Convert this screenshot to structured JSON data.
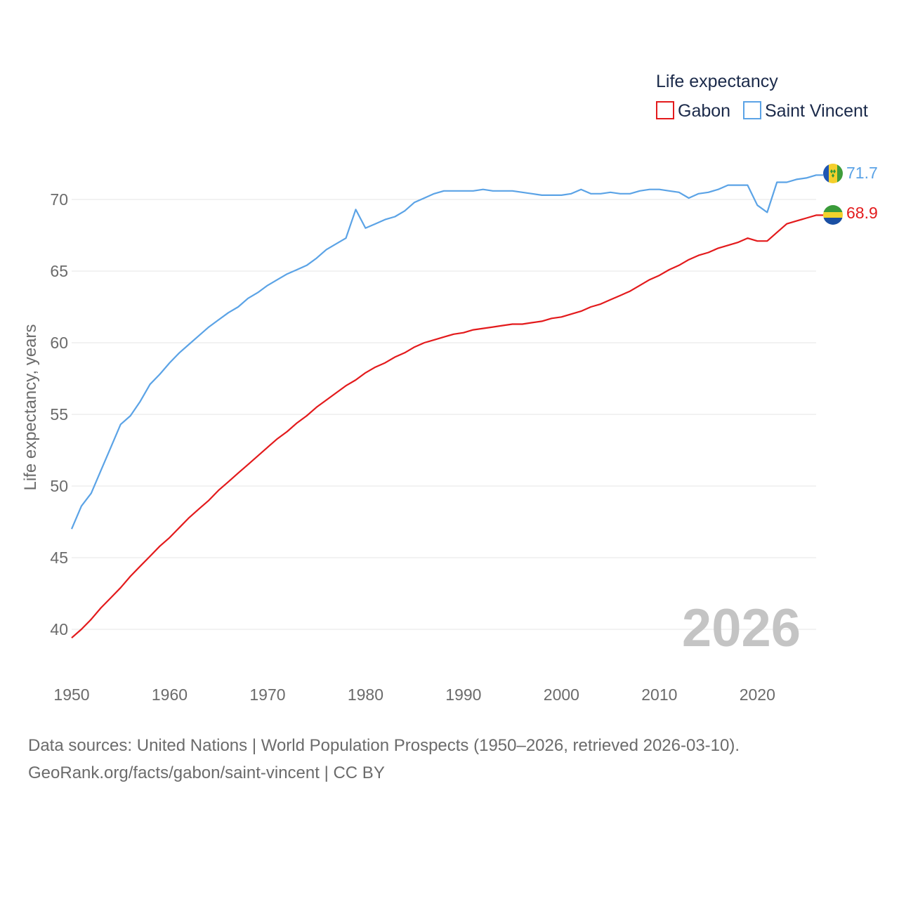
{
  "chart_data": {
    "type": "line",
    "title": "",
    "legend_title": "Life expectancy",
    "ylabel": "Life expectancy, years",
    "xlabel": "",
    "xlim": [
      1950,
      2026
    ],
    "ylim": [
      38,
      73
    ],
    "x_ticks": [
      1950,
      1960,
      1970,
      1980,
      1990,
      2000,
      2010,
      2020
    ],
    "y_ticks": [
      40,
      45,
      50,
      55,
      60,
      65,
      70
    ],
    "grid": true,
    "legend_position": "top-right",
    "current_year_label": "2026",
    "x": [
      1950,
      1951,
      1952,
      1953,
      1954,
      1955,
      1956,
      1957,
      1958,
      1959,
      1960,
      1961,
      1962,
      1963,
      1964,
      1965,
      1966,
      1967,
      1968,
      1969,
      1970,
      1971,
      1972,
      1973,
      1974,
      1975,
      1976,
      1977,
      1978,
      1979,
      1980,
      1981,
      1982,
      1983,
      1984,
      1985,
      1986,
      1987,
      1988,
      1989,
      1990,
      1991,
      1992,
      1993,
      1994,
      1995,
      1996,
      1997,
      1998,
      1999,
      2000,
      2001,
      2002,
      2003,
      2004,
      2005,
      2006,
      2007,
      2008,
      2009,
      2010,
      2011,
      2012,
      2013,
      2014,
      2015,
      2016,
      2017,
      2018,
      2019,
      2020,
      2021,
      2022,
      2023,
      2024,
      2025,
      2026
    ],
    "series": [
      {
        "name": "Gabon",
        "color": "#e31a1c",
        "end_label": "68.9",
        "values": [
          39.4,
          40.0,
          40.7,
          41.5,
          42.2,
          42.9,
          43.7,
          44.4,
          45.1,
          45.8,
          46.4,
          47.1,
          47.8,
          48.4,
          49.0,
          49.7,
          50.3,
          50.9,
          51.5,
          52.1,
          52.7,
          53.3,
          53.8,
          54.4,
          54.9,
          55.5,
          56.0,
          56.5,
          57.0,
          57.4,
          57.9,
          58.3,
          58.6,
          59.0,
          59.3,
          59.7,
          60.0,
          60.2,
          60.4,
          60.6,
          60.7,
          60.9,
          61.0,
          61.1,
          61.2,
          61.3,
          61.3,
          61.4,
          61.5,
          61.7,
          61.8,
          62.0,
          62.2,
          62.5,
          62.7,
          63.0,
          63.3,
          63.6,
          64.0,
          64.4,
          64.7,
          65.1,
          65.4,
          65.8,
          66.1,
          66.3,
          66.6,
          66.8,
          67.0,
          67.3,
          67.1,
          67.1,
          67.7,
          68.3,
          68.5,
          68.7,
          68.9
        ]
      },
      {
        "name": "Saint Vincent",
        "color": "#5ba3e6",
        "end_label": "71.7",
        "values": [
          47.0,
          48.6,
          49.5,
          51.1,
          52.7,
          54.3,
          54.9,
          55.9,
          57.1,
          57.8,
          58.6,
          59.3,
          59.9,
          60.5,
          61.1,
          61.6,
          62.1,
          62.5,
          63.1,
          63.5,
          64.0,
          64.4,
          64.8,
          65.1,
          65.4,
          65.9,
          66.5,
          66.9,
          67.3,
          69.3,
          68.0,
          68.3,
          68.6,
          68.8,
          69.2,
          69.8,
          70.1,
          70.4,
          70.6,
          70.6,
          70.6,
          70.6,
          70.7,
          70.6,
          70.6,
          70.6,
          70.5,
          70.4,
          70.3,
          70.3,
          70.3,
          70.4,
          70.7,
          70.4,
          70.4,
          70.5,
          70.4,
          70.4,
          70.6,
          70.7,
          70.7,
          70.6,
          70.5,
          70.1,
          70.4,
          70.5,
          70.7,
          71.0,
          71.0,
          71.0,
          69.6,
          69.1,
          71.2,
          71.2,
          71.4,
          71.5,
          71.7
        ]
      }
    ]
  },
  "flags": {
    "gabon": {
      "colors": [
        "#3a9b3a",
        "#f2d22c",
        "#1a4fa3"
      ]
    },
    "saint_vincent": {
      "colors": [
        "#1f56b3",
        "#f4cf2c",
        "#3f9d3a"
      ],
      "diamond_color": "#2e9a3a"
    }
  },
  "source": {
    "line1": "Data sources: United Nations | World Population Prospects (1950–2026, retrieved 2026-03-10).",
    "line2": "GeoRank.org/facts/gabon/saint-vincent | CC BY"
  }
}
